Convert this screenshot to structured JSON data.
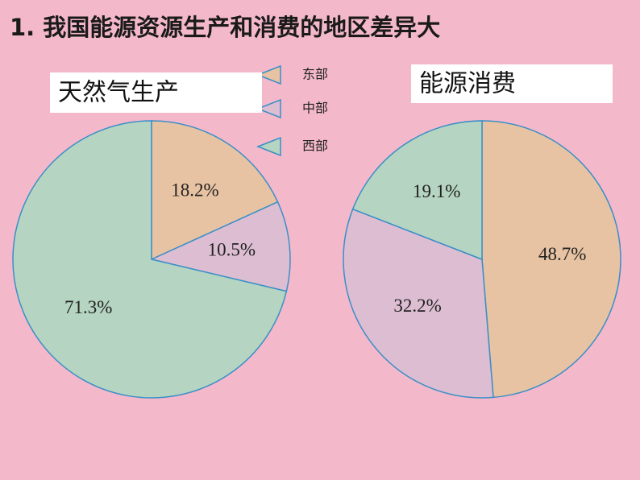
{
  "title": "1. 我国能源资源生产和消费的地区差异大",
  "legend": [
    {
      "name": "东部",
      "color": "#e8c3a3"
    },
    {
      "name": "中部",
      "color": "#ddbdd1"
    },
    {
      "name": "西部",
      "color": "#b5d4c1"
    }
  ],
  "chart_data": [
    {
      "type": "pie",
      "title": "天然气生产",
      "values": [
        18.2,
        10.5,
        71.3
      ],
      "value_labels": [
        "18.2%",
        "10.5%",
        "71.3%"
      ]
    },
    {
      "type": "pie",
      "title": "能源消费",
      "values": [
        48.7,
        32.2,
        19.1
      ],
      "value_labels": [
        "48.7%",
        "32.2%",
        "19.1%"
      ]
    }
  ]
}
